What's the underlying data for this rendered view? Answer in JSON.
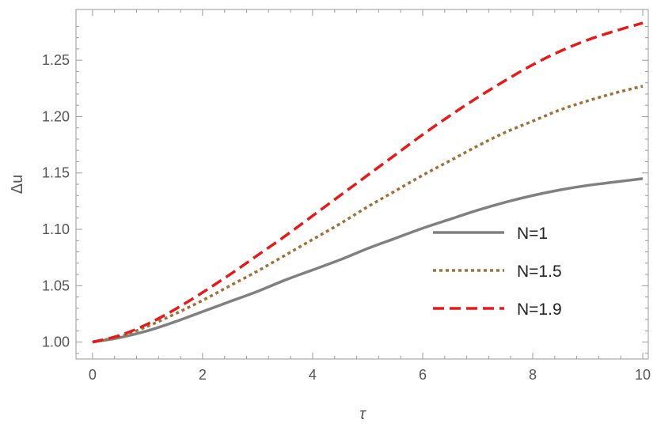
{
  "chart_data": {
    "type": "line",
    "title": "",
    "xlabel": "τ",
    "ylabel": "Δu",
    "xlim": [
      -0.3,
      10.1
    ],
    "ylim": [
      0.985,
      1.295
    ],
    "xticks": [
      0,
      2,
      4,
      6,
      8,
      10
    ],
    "xtick_labels": [
      "0",
      "2",
      "4",
      "6",
      "8",
      "10"
    ],
    "yticks": [
      1.0,
      1.05,
      1.1,
      1.15,
      1.2,
      1.25
    ],
    "ytick_labels": [
      "1.00",
      "1.05",
      "1.10",
      "1.15",
      "1.20",
      "1.25"
    ],
    "grid": false,
    "legend_position": "right",
    "x": [
      0,
      0.5,
      1,
      1.5,
      2,
      2.5,
      3,
      3.5,
      4,
      4.5,
      5,
      5.5,
      6,
      6.5,
      7,
      7.5,
      8,
      8.5,
      9,
      9.5,
      10
    ],
    "series": [
      {
        "name": "N=1",
        "color": "#808080",
        "line_style": "solid",
        "values": [
          1.0,
          1.004,
          1.01,
          1.018,
          1.027,
          1.036,
          1.045,
          1.055,
          1.064,
          1.073,
          1.083,
          1.092,
          1.101,
          1.109,
          1.117,
          1.124,
          1.13,
          1.135,
          1.139,
          1.142,
          1.145
        ]
      },
      {
        "name": "N=1.5",
        "color": "#A0703A",
        "line_style": "dotted",
        "values": [
          1.0,
          1.005,
          1.014,
          1.025,
          1.037,
          1.05,
          1.063,
          1.077,
          1.091,
          1.105,
          1.12,
          1.134,
          1.148,
          1.161,
          1.174,
          1.186,
          1.196,
          1.206,
          1.214,
          1.221,
          1.227
        ]
      },
      {
        "name": "N=1.9",
        "color": "#E51A1A",
        "line_style": "dashed",
        "values": [
          1.0,
          1.006,
          1.016,
          1.029,
          1.044,
          1.06,
          1.077,
          1.094,
          1.112,
          1.13,
          1.148,
          1.166,
          1.184,
          1.201,
          1.217,
          1.232,
          1.246,
          1.258,
          1.268,
          1.276,
          1.283
        ]
      }
    ]
  }
}
